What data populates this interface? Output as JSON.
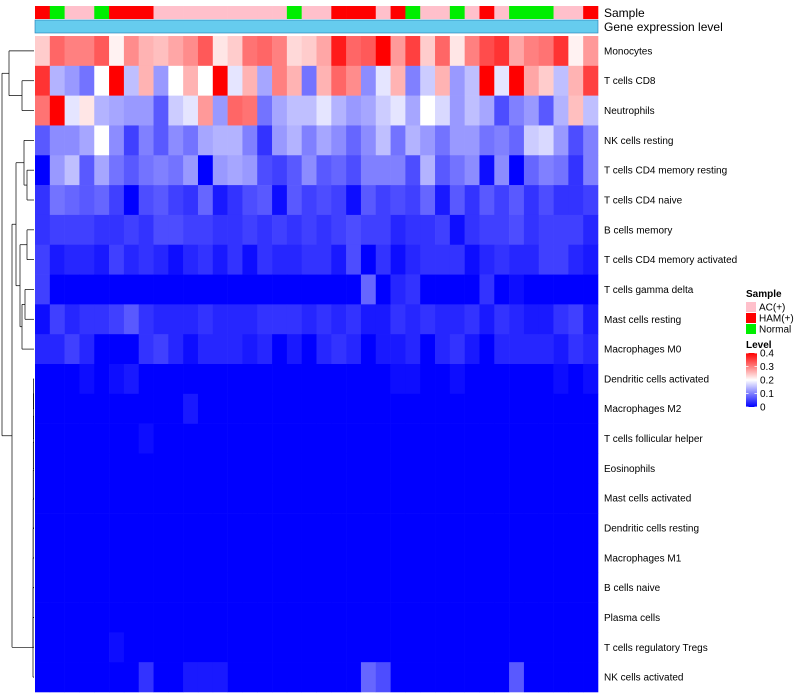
{
  "chart_data": {
    "type": "heatmap",
    "title": "",
    "annotation_tracks": {
      "sample_label": "Sample",
      "expression_label": "Gene expression level",
      "sample_row": [
        "HAM(+)",
        "Normal",
        "AC(+)",
        "AC(+)",
        "Normal",
        "HAM(+)",
        "HAM(+)",
        "HAM(+)",
        "AC(+)",
        "AC(+)",
        "AC(+)",
        "AC(+)",
        "AC(+)",
        "AC(+)",
        "AC(+)",
        "AC(+)",
        "AC(+)",
        "Normal",
        "AC(+)",
        "AC(+)",
        "HAM(+)",
        "HAM(+)",
        "HAM(+)",
        "AC(+)",
        "HAM(+)",
        "Normal",
        "AC(+)",
        "AC(+)",
        "Normal",
        "AC(+)",
        "HAM(+)",
        "AC(+)",
        "Normal",
        "Normal",
        "Normal",
        "AC(+)",
        "AC(+)",
        "HAM(+)"
      ]
    },
    "rows": [
      {
        "name": "Monocytes",
        "values": [
          0.24,
          0.32,
          0.3,
          0.3,
          0.33,
          0.21,
          0.29,
          0.26,
          0.25,
          0.27,
          0.29,
          0.33,
          0.22,
          0.24,
          0.31,
          0.32,
          0.3,
          0.23,
          0.24,
          0.27,
          0.38,
          0.32,
          0.33,
          0.41,
          0.28,
          0.35,
          0.24,
          0.32,
          0.22,
          0.3,
          0.34,
          0.36,
          0.27,
          0.3,
          0.31,
          0.36,
          0.21,
          0.28
        ]
      },
      {
        "name": "T cells CD8",
        "values": [
          0.36,
          0.14,
          0.12,
          0.09,
          0.2,
          0.45,
          0.15,
          0.26,
          0.12,
          0.2,
          0.26,
          0.2,
          0.43,
          0.18,
          0.26,
          0.13,
          0.3,
          0.26,
          0.09,
          0.26,
          0.32,
          0.29,
          0.11,
          0.18,
          0.26,
          0.1,
          0.16,
          0.26,
          0.12,
          0.15,
          0.42,
          0.18,
          0.44,
          0.27,
          0.24,
          0.15,
          0.26,
          0.35
        ]
      },
      {
        "name": "Neutrophils",
        "values": [
          0.31,
          0.41,
          0.18,
          0.22,
          0.14,
          0.13,
          0.12,
          0.12,
          0.07,
          0.16,
          0.18,
          0.28,
          0.12,
          0.32,
          0.31,
          0.09,
          0.13,
          0.15,
          0.15,
          0.18,
          0.14,
          0.12,
          0.13,
          0.16,
          0.18,
          0.13,
          0.2,
          0.17,
          0.12,
          0.15,
          0.13,
          0.06,
          0.1,
          0.12,
          0.07,
          0.14,
          0.25,
          0.15
        ]
      },
      {
        "name": "NK cells resting",
        "values": [
          0.07,
          0.11,
          0.11,
          0.13,
          0.2,
          0.11,
          0.05,
          0.1,
          0.07,
          0.11,
          0.09,
          0.13,
          0.14,
          0.14,
          0.1,
          0.04,
          0.12,
          0.14,
          0.1,
          0.13,
          0.11,
          0.08,
          0.11,
          0.15,
          0.09,
          0.14,
          0.12,
          0.09,
          0.12,
          0.12,
          0.09,
          0.1,
          0.08,
          0.16,
          0.17,
          0.12,
          0.06,
          0.1
        ]
      },
      {
        "name": "T cells CD4 memory resting",
        "values": [
          0.0,
          0.12,
          0.15,
          0.07,
          0.13,
          0.09,
          0.07,
          0.09,
          0.1,
          0.09,
          0.12,
          0.0,
          0.12,
          0.13,
          0.12,
          0.06,
          0.05,
          0.07,
          0.11,
          0.07,
          0.08,
          0.06,
          0.1,
          0.1,
          0.1,
          0.06,
          0.14,
          0.07,
          0.09,
          0.11,
          0.01,
          0.11,
          0.0,
          0.08,
          0.1,
          0.09,
          0.04,
          0.1
        ]
      },
      {
        "name": "T cells CD4 naive",
        "values": [
          0.04,
          0.09,
          0.08,
          0.07,
          0.08,
          0.05,
          0.0,
          0.06,
          0.07,
          0.05,
          0.04,
          0.08,
          0.02,
          0.04,
          0.06,
          0.07,
          0.01,
          0.07,
          0.05,
          0.06,
          0.05,
          0.01,
          0.07,
          0.05,
          0.06,
          0.05,
          0.08,
          0.02,
          0.07,
          0.04,
          0.07,
          0.05,
          0.07,
          0.04,
          0.06,
          0.04,
          0.04,
          0.05
        ]
      },
      {
        "name": "B cells memory",
        "values": [
          0.04,
          0.05,
          0.05,
          0.05,
          0.04,
          0.04,
          0.05,
          0.04,
          0.06,
          0.06,
          0.05,
          0.05,
          0.04,
          0.04,
          0.05,
          0.04,
          0.05,
          0.04,
          0.05,
          0.04,
          0.05,
          0.06,
          0.05,
          0.05,
          0.03,
          0.04,
          0.04,
          0.05,
          0.01,
          0.04,
          0.05,
          0.05,
          0.06,
          0.04,
          0.05,
          0.05,
          0.05,
          0.03
        ]
      },
      {
        "name": "T cells CD4 memory activated",
        "values": [
          0.05,
          0.02,
          0.03,
          0.03,
          0.02,
          0.05,
          0.03,
          0.04,
          0.03,
          0.01,
          0.03,
          0.04,
          0.02,
          0.04,
          0.01,
          0.04,
          0.03,
          0.03,
          0.04,
          0.04,
          0.02,
          0.06,
          0.0,
          0.04,
          0.01,
          0.03,
          0.04,
          0.04,
          0.04,
          0.01,
          0.03,
          0.04,
          0.03,
          0.03,
          0.05,
          0.05,
          0.03,
          0.02
        ]
      },
      {
        "name": "T cells gamma delta",
        "values": [
          0.05,
          0.0,
          0.0,
          0.0,
          0.0,
          0.0,
          0.0,
          0.0,
          0.0,
          0.0,
          0.0,
          0.0,
          0.0,
          0.0,
          0.0,
          0.0,
          0.0,
          0.0,
          0.0,
          0.0,
          0.0,
          0.0,
          0.08,
          0.0,
          0.03,
          0.04,
          0.0,
          0.0,
          0.0,
          0.0,
          0.04,
          0.0,
          0.01,
          0.0,
          0.0,
          0.0,
          0.0,
          0.0
        ]
      },
      {
        "name": "Mast cells resting",
        "values": [
          0.01,
          0.05,
          0.03,
          0.04,
          0.04,
          0.05,
          0.07,
          0.04,
          0.03,
          0.03,
          0.03,
          0.04,
          0.03,
          0.03,
          0.03,
          0.04,
          0.04,
          0.04,
          0.03,
          0.04,
          0.03,
          0.04,
          0.02,
          0.02,
          0.04,
          0.03,
          0.04,
          0.03,
          0.03,
          0.04,
          0.02,
          0.04,
          0.03,
          0.02,
          0.02,
          0.04,
          0.05,
          0.02
        ]
      },
      {
        "name": "Macrophages M0",
        "values": [
          0.03,
          0.03,
          0.05,
          0.03,
          0.0,
          0.0,
          0.0,
          0.04,
          0.05,
          0.03,
          0.01,
          0.03,
          0.03,
          0.03,
          0.02,
          0.03,
          0.0,
          0.02,
          0.0,
          0.03,
          0.04,
          0.03,
          0.0,
          0.02,
          0.02,
          0.03,
          0.0,
          0.03,
          0.04,
          0.02,
          0.0,
          0.03,
          0.03,
          0.03,
          0.03,
          0.02,
          0.04,
          0.03
        ]
      },
      {
        "name": "Dendritic cells activated",
        "values": [
          0.0,
          0.0,
          0.0,
          0.01,
          0.0,
          0.01,
          0.02,
          0.0,
          0.0,
          0.0,
          0.0,
          0.0,
          0.0,
          0.0,
          0.0,
          0.0,
          0.0,
          0.0,
          0.0,
          0.0,
          0.0,
          0.0,
          0.0,
          0.0,
          0.01,
          0.01,
          0.0,
          0.0,
          0.01,
          0.0,
          0.0,
          0.0,
          0.0,
          0.0,
          0.0,
          0.01,
          0.0,
          0.01
        ]
      },
      {
        "name": "Macrophages M2",
        "values": [
          0.0,
          0.0,
          0.0,
          0.0,
          0.0,
          0.0,
          0.0,
          0.0,
          0.0,
          0.0,
          0.02,
          0.0,
          0.0,
          0.0,
          0.0,
          0.0,
          0.0,
          0.0,
          0.0,
          0.0,
          0.0,
          0.0,
          0.0,
          0.0,
          0.0,
          0.0,
          0.0,
          0.0,
          0.0,
          0.0,
          0.0,
          0.0,
          0.0,
          0.0,
          0.0,
          0.0,
          0.0,
          0.0
        ]
      },
      {
        "name": "T cells follicular helper",
        "values": [
          0.0,
          0.0,
          0.0,
          0.0,
          0.0,
          0.0,
          0.0,
          0.01,
          0.0,
          0.0,
          0.0,
          0.0,
          0.0,
          0.0,
          0.0,
          0.0,
          0.0,
          0.0,
          0.0,
          0.0,
          0.0,
          0.0,
          0.0,
          0.0,
          0.0,
          0.0,
          0.0,
          0.0,
          0.0,
          0.0,
          0.0,
          0.0,
          0.0,
          0.0,
          0.0,
          0.0,
          0.0,
          0.0
        ]
      },
      {
        "name": "Eosinophils",
        "values": [
          0.0,
          0.0,
          0.0,
          0.0,
          0.0,
          0.0,
          0.0,
          0.0,
          0.0,
          0.0,
          0.0,
          0.0,
          0.0,
          0.0,
          0.0,
          0.0,
          0.0,
          0.0,
          0.0,
          0.0,
          0.0,
          0.0,
          0.0,
          0.0,
          0.0,
          0.0,
          0.0,
          0.0,
          0.0,
          0.0,
          0.0,
          0.0,
          0.0,
          0.0,
          0.0,
          0.0,
          0.0,
          0.0
        ]
      },
      {
        "name": "Mast cells activated",
        "values": [
          0.0,
          0.0,
          0.0,
          0.0,
          0.0,
          0.0,
          0.0,
          0.0,
          0.0,
          0.0,
          0.0,
          0.0,
          0.0,
          0.0,
          0.0,
          0.0,
          0.0,
          0.0,
          0.0,
          0.0,
          0.0,
          0.0,
          0.0,
          0.0,
          0.0,
          0.0,
          0.0,
          0.0,
          0.0,
          0.0,
          0.0,
          0.0,
          0.0,
          0.0,
          0.0,
          0.0,
          0.0,
          0.0
        ]
      },
      {
        "name": "Dendritic cells resting",
        "values": [
          0.0,
          0.0,
          0.0,
          0.0,
          0.0,
          0.0,
          0.0,
          0.0,
          0.0,
          0.0,
          0.0,
          0.0,
          0.0,
          0.0,
          0.0,
          0.0,
          0.0,
          0.0,
          0.0,
          0.0,
          0.0,
          0.0,
          0.0,
          0.0,
          0.0,
          0.0,
          0.0,
          0.0,
          0.0,
          0.0,
          0.0,
          0.0,
          0.0,
          0.0,
          0.0,
          0.0,
          0.0,
          0.0
        ]
      },
      {
        "name": "Macrophages M1",
        "values": [
          0.0,
          0.0,
          0.0,
          0.0,
          0.0,
          0.0,
          0.0,
          0.0,
          0.0,
          0.0,
          0.0,
          0.0,
          0.0,
          0.0,
          0.0,
          0.0,
          0.0,
          0.0,
          0.0,
          0.0,
          0.0,
          0.0,
          0.0,
          0.0,
          0.0,
          0.0,
          0.0,
          0.0,
          0.0,
          0.0,
          0.0,
          0.0,
          0.0,
          0.0,
          0.0,
          0.0,
          0.0,
          0.0
        ]
      },
      {
        "name": "B cells naive",
        "values": [
          0.0,
          0.0,
          0.0,
          0.0,
          0.0,
          0.0,
          0.0,
          0.0,
          0.0,
          0.0,
          0.0,
          0.0,
          0.0,
          0.0,
          0.0,
          0.0,
          0.0,
          0.0,
          0.0,
          0.0,
          0.0,
          0.0,
          0.0,
          0.0,
          0.0,
          0.0,
          0.0,
          0.0,
          0.0,
          0.0,
          0.0,
          0.0,
          0.0,
          0.0,
          0.0,
          0.0,
          0.0,
          0.0
        ]
      },
      {
        "name": "Plasma cells",
        "values": [
          0.0,
          0.0,
          0.0,
          0.0,
          0.0,
          0.0,
          0.0,
          0.0,
          0.0,
          0.0,
          0.0,
          0.0,
          0.0,
          0.0,
          0.0,
          0.0,
          0.0,
          0.0,
          0.0,
          0.0,
          0.0,
          0.0,
          0.0,
          0.0,
          0.0,
          0.0,
          0.0,
          0.0,
          0.0,
          0.0,
          0.0,
          0.0,
          0.0,
          0.0,
          0.0,
          0.0,
          0.0,
          0.0
        ]
      },
      {
        "name": "T cells regulatory  Tregs",
        "values": [
          0.0,
          0.0,
          0.0,
          0.0,
          0.0,
          0.01,
          0.0,
          0.0,
          0.0,
          0.0,
          0.0,
          0.0,
          0.0,
          0.0,
          0.0,
          0.0,
          0.0,
          0.0,
          0.0,
          0.0,
          0.0,
          0.0,
          0.0,
          0.0,
          0.0,
          0.0,
          0.0,
          0.0,
          0.0,
          0.0,
          0.0,
          0.0,
          0.0,
          0.0,
          0.0,
          0.0,
          0.0,
          0.0
        ]
      },
      {
        "name": "NK cells activated",
        "values": [
          0.0,
          0.0,
          0.0,
          0.0,
          0.0,
          0.0,
          0.0,
          0.04,
          0.0,
          0.0,
          0.02,
          0.02,
          0.02,
          0.0,
          0.0,
          0.0,
          0.0,
          0.0,
          0.0,
          0.0,
          0.0,
          0.0,
          0.08,
          0.06,
          0.0,
          0.0,
          0.0,
          0.0,
          0.0,
          0.0,
          0.0,
          0.0,
          0.07,
          0.0,
          0.0,
          0.0,
          0.0,
          0.0
        ]
      }
    ],
    "legends": {
      "sample": {
        "title": "Sample",
        "items": [
          {
            "label": "AC(+)",
            "color": "#ffc0cb"
          },
          {
            "label": "HAM(+)",
            "color": "#ff0000"
          },
          {
            "label": "Normal",
            "color": "#00ee00"
          }
        ]
      },
      "level": {
        "title": "Level",
        "range": [
          0,
          0.4
        ],
        "ticks": [
          "0.4",
          "0.3",
          "0.2",
          "0.1",
          "0"
        ]
      }
    }
  },
  "colors": {
    "low": "#0000ff",
    "mid": "#ffffff",
    "high": "#ff0000",
    "expression_bar": "#66ccee",
    "expression_border": "#1f78b4",
    "dendrogram": "#000000"
  }
}
